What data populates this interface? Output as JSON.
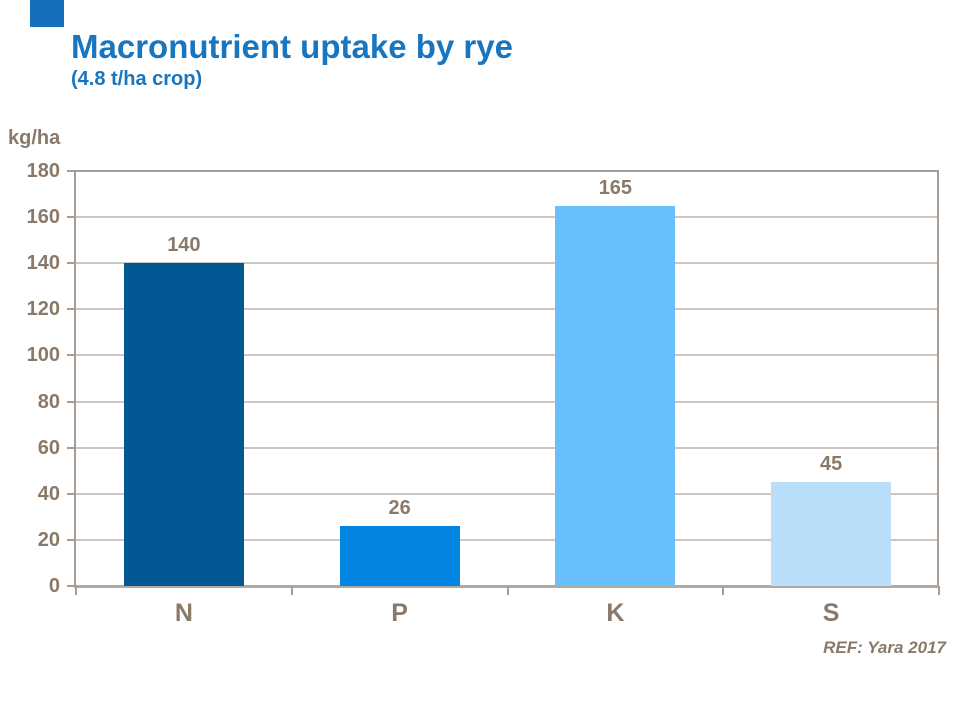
{
  "slide": {
    "accent_color": "#1470BD"
  },
  "chart_data": {
    "type": "bar",
    "title": "Macronutrient uptake by rye",
    "subtitle": "(4.8 t/ha crop)",
    "ylabel": "kg/ha",
    "categories": [
      "N",
      "P",
      "K",
      "S"
    ],
    "values": [
      140,
      26,
      165,
      45
    ],
    "bar_colors": [
      "#035792",
      "#0285E3",
      "#69BEFC",
      "#B9DEFA"
    ],
    "ylim": [
      0,
      180
    ],
    "ytick_step": 20,
    "grid": true,
    "legend": false,
    "value_labels": true,
    "title_color": "#1875C0",
    "text_color": "#8A7968",
    "grid_color": "#CDC6BE",
    "axis_color": "#A89D92"
  },
  "footer": {
    "ref_label": "REF: Yara 2017"
  }
}
